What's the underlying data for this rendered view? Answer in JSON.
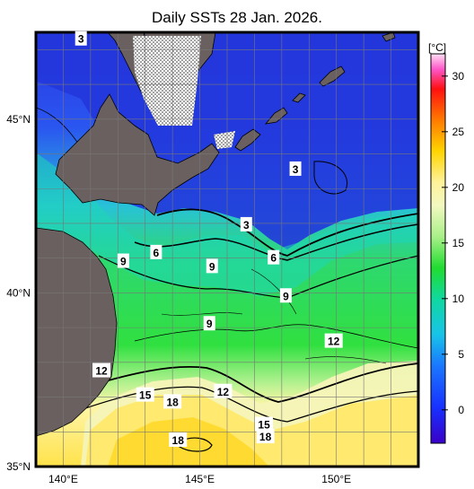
{
  "title": "Daily SSTs 28 Jan. 2026.",
  "colorbar": {
    "unit": "[°C]",
    "ticks": [
      "30",
      "25",
      "20",
      "15",
      "10",
      "5",
      "0"
    ],
    "tick_values": [
      30,
      25,
      20,
      15,
      10,
      5,
      0
    ],
    "range": [
      -3,
      32
    ]
  },
  "axes": {
    "lat_labels": [
      "45°N",
      "40°N",
      "35°N"
    ],
    "lat_values": [
      45,
      40,
      35
    ],
    "lon_labels": [
      "140°E",
      "145°E",
      "150°E"
    ],
    "lon_values": [
      140,
      145,
      150
    ],
    "lon_range": [
      139,
      153
    ],
    "lat_range": [
      35,
      47.5
    ]
  },
  "contour_labels": [
    {
      "text": "3",
      "lon": 140.65,
      "lat": 47.3
    },
    {
      "text": "3",
      "lon": 148.5,
      "lat": 43.55
    },
    {
      "text": "3",
      "lon": 146.7,
      "lat": 41.95
    },
    {
      "text": "6",
      "lon": 143.4,
      "lat": 41.15
    },
    {
      "text": "6",
      "lon": 147.7,
      "lat": 41.0
    },
    {
      "text": "9",
      "lon": 142.2,
      "lat": 40.9
    },
    {
      "text": "9",
      "lon": 145.45,
      "lat": 40.75
    },
    {
      "text": "9",
      "lon": 148.15,
      "lat": 39.9
    },
    {
      "text": "9",
      "lon": 145.35,
      "lat": 39.1
    },
    {
      "text": "12",
      "lon": 149.9,
      "lat": 38.6
    },
    {
      "text": "12",
      "lon": 145.85,
      "lat": 37.15
    },
    {
      "text": "12",
      "lon": 141.4,
      "lat": 37.75
    },
    {
      "text": "15",
      "lon": 143.0,
      "lat": 37.05
    },
    {
      "text": "18",
      "lon": 144.0,
      "lat": 36.85
    },
    {
      "text": "15",
      "lon": 147.35,
      "lat": 36.2
    },
    {
      "text": "18",
      "lon": 147.4,
      "lat": 35.85
    },
    {
      "text": "18",
      "lon": 144.2,
      "lat": 35.75
    }
  ],
  "colors": {
    "land": "#6b6060",
    "frame": "#000000",
    "grid": "#777777"
  }
}
